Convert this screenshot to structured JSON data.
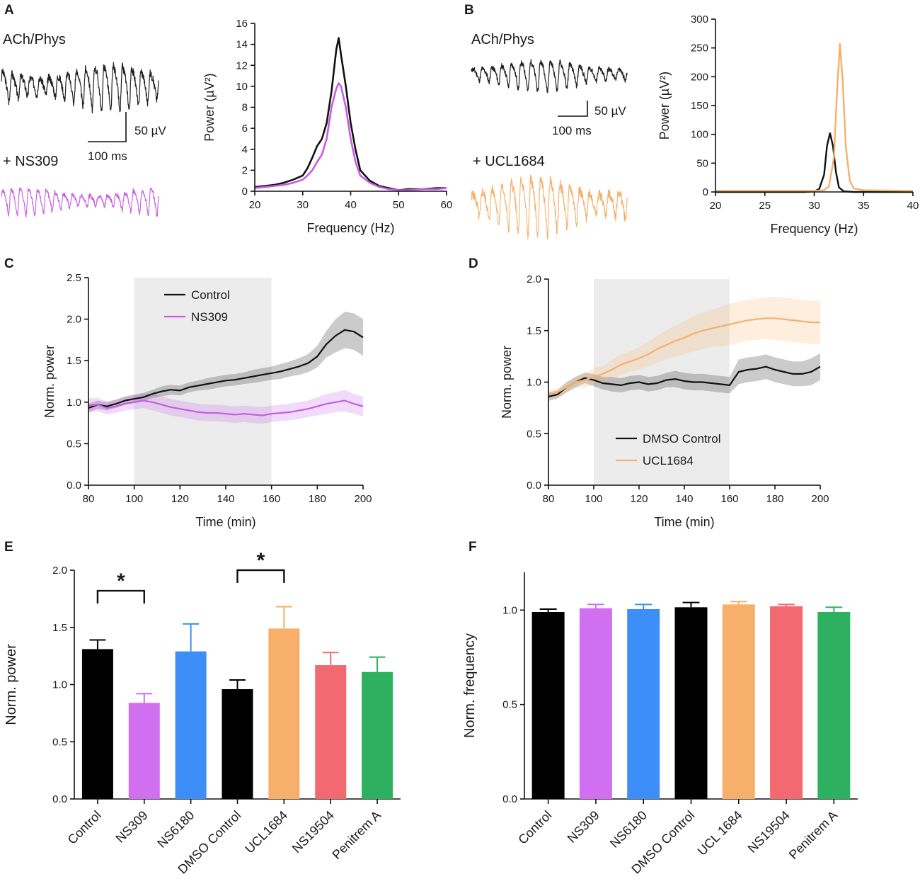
{
  "panels": {
    "A": {
      "letter": "A",
      "trace_top_label": "ACh/Phys",
      "trace_bottom_label": "+ NS309",
      "scale_v": "50 µV",
      "scale_t": "100 ms",
      "trace_top_color": "#222222",
      "trace_bottom_color": "#c65de6"
    },
    "B": {
      "letter": "B",
      "trace_top_label": "ACh/Phys",
      "trace_bottom_label": "+ UCL1684",
      "scale_v": "50 µV",
      "scale_t": "100 ms",
      "trace_top_color": "#222222",
      "trace_bottom_color": "#f5b16b"
    },
    "C": {
      "letter": "C"
    },
    "D": {
      "letter": "D"
    },
    "E": {
      "letter": "E",
      "sig_marker": "*"
    },
    "F": {
      "letter": "F"
    }
  },
  "chart_data": [
    {
      "id": "A-spectrum",
      "type": "line",
      "xlabel": "Frequency (Hz)",
      "ylabel": "Power (µV²)",
      "xlim": [
        20,
        60
      ],
      "ylim": [
        0,
        16
      ],
      "xticks": [
        20,
        30,
        40,
        50,
        60
      ],
      "yticks": [
        0,
        2,
        4,
        6,
        8,
        10,
        12,
        14,
        16
      ],
      "series": [
        {
          "name": "ACh/Phys",
          "color": "#111111",
          "x": [
            20,
            22,
            24,
            26,
            28,
            30,
            31,
            32,
            33,
            34,
            35,
            36,
            37,
            37.5,
            38,
            39,
            40,
            41,
            42,
            44,
            46,
            48,
            50,
            52,
            55,
            58,
            60
          ],
          "y": [
            0.4,
            0.5,
            0.6,
            0.8,
            1.1,
            1.5,
            2.2,
            3.2,
            4.3,
            5.0,
            6.5,
            9.5,
            13.5,
            14.6,
            13.0,
            10.0,
            6.5,
            4.0,
            2.0,
            1.0,
            0.5,
            0.3,
            0.1,
            0.2,
            0.2,
            0.3,
            0.3
          ]
        },
        {
          "name": "+ NS309",
          "color": "#c65de6",
          "x": [
            20,
            22,
            24,
            26,
            28,
            30,
            31,
            32,
            33,
            34,
            35,
            36,
            37,
            37.5,
            38,
            39,
            40,
            41,
            42,
            44,
            46,
            48,
            50,
            52,
            55,
            58,
            60
          ],
          "y": [
            0.3,
            0.4,
            0.5,
            0.6,
            0.8,
            1.1,
            1.5,
            2.0,
            2.8,
            3.5,
            5.0,
            8.0,
            9.8,
            10.3,
            10.0,
            8.0,
            5.0,
            2.8,
            1.5,
            0.8,
            0.4,
            0.2,
            0.1,
            0.1,
            0.2,
            0.2,
            0.3
          ]
        }
      ]
    },
    {
      "id": "B-spectrum",
      "type": "line",
      "xlabel": "Frequency (Hz)",
      "ylabel": "Power (µV²)",
      "xlim": [
        20,
        40
      ],
      "ylim": [
        0,
        300
      ],
      "xticks": [
        20,
        25,
        30,
        35,
        40
      ],
      "yticks": [
        0,
        50,
        100,
        150,
        200,
        250,
        300
      ],
      "series": [
        {
          "name": "ACh/Phys",
          "color": "#111111",
          "x": [
            20,
            29,
            30,
            30.5,
            31,
            31.3,
            31.6,
            31.9,
            32.2,
            32.5,
            33,
            34,
            40
          ],
          "y": [
            0,
            0,
            1,
            5,
            30,
            80,
            102,
            80,
            35,
            8,
            1,
            0,
            0
          ]
        },
        {
          "name": "+ UCL1684",
          "color": "#f5b16b",
          "x": [
            20,
            30,
            31,
            31.5,
            32,
            32.3,
            32.6,
            32.9,
            33.2,
            33.6,
            34,
            35,
            40
          ],
          "y": [
            2,
            2,
            3,
            10,
            60,
            170,
            257,
            190,
            80,
            20,
            6,
            3,
            2
          ]
        }
      ]
    },
    {
      "id": "C-timecourse",
      "type": "line",
      "xlabel": "Time (min)",
      "ylabel": "Norm. power",
      "xlim": [
        80,
        200
      ],
      "ylim": [
        0,
        2.5
      ],
      "xticks": [
        80,
        100,
        120,
        140,
        160,
        180,
        200
      ],
      "yticks": [
        0.0,
        0.5,
        1.0,
        1.5,
        2.0,
        2.5
      ],
      "ytick_labels": [
        "0.0",
        "0.5",
        "1.0",
        "1.5",
        "2.0",
        "2.5"
      ],
      "shaded_interval": [
        100,
        160
      ],
      "legend": [
        "Control",
        "NS309"
      ],
      "series": [
        {
          "name": "Control",
          "color": "#111111",
          "x": [
            80,
            84,
            88,
            92,
            96,
            100,
            104,
            108,
            112,
            116,
            120,
            124,
            128,
            132,
            136,
            140,
            144,
            148,
            152,
            156,
            160,
            164,
            168,
            172,
            176,
            180,
            184,
            188,
            192,
            196,
            200
          ],
          "y": [
            0.93,
            0.97,
            0.95,
            0.98,
            1.02,
            1.04,
            1.06,
            1.1,
            1.13,
            1.15,
            1.14,
            1.18,
            1.2,
            1.22,
            1.24,
            1.26,
            1.27,
            1.29,
            1.31,
            1.33,
            1.35,
            1.37,
            1.4,
            1.43,
            1.47,
            1.55,
            1.7,
            1.8,
            1.87,
            1.85,
            1.78
          ],
          "err": [
            0.05,
            0.05,
            0.05,
            0.05,
            0.05,
            0.05,
            0.05,
            0.05,
            0.06,
            0.06,
            0.06,
            0.06,
            0.06,
            0.07,
            0.07,
            0.07,
            0.07,
            0.07,
            0.08,
            0.08,
            0.08,
            0.09,
            0.09,
            0.1,
            0.11,
            0.13,
            0.16,
            0.2,
            0.22,
            0.22,
            0.22
          ]
        },
        {
          "name": "NS309",
          "color": "#c65de6",
          "x": [
            80,
            84,
            88,
            92,
            96,
            100,
            104,
            108,
            112,
            116,
            120,
            124,
            128,
            132,
            136,
            140,
            144,
            148,
            152,
            156,
            160,
            164,
            168,
            172,
            176,
            180,
            184,
            188,
            192,
            196,
            200
          ],
          "y": [
            0.96,
            0.97,
            0.93,
            0.95,
            0.98,
            1.0,
            1.02,
            1.0,
            0.97,
            0.94,
            0.92,
            0.9,
            0.88,
            0.87,
            0.87,
            0.86,
            0.85,
            0.86,
            0.85,
            0.84,
            0.86,
            0.87,
            0.88,
            0.9,
            0.92,
            0.95,
            0.98,
            1.0,
            1.02,
            0.98,
            0.95
          ],
          "err": [
            0.09,
            0.08,
            0.08,
            0.08,
            0.08,
            0.09,
            0.09,
            0.1,
            0.1,
            0.1,
            0.1,
            0.1,
            0.1,
            0.1,
            0.1,
            0.1,
            0.1,
            0.1,
            0.1,
            0.1,
            0.1,
            0.1,
            0.1,
            0.1,
            0.1,
            0.11,
            0.12,
            0.12,
            0.13,
            0.12,
            0.12
          ]
        }
      ]
    },
    {
      "id": "D-timecourse",
      "type": "line",
      "xlabel": "Time (min)",
      "ylabel": "Norm. power",
      "xlim": [
        80,
        200
      ],
      "ylim": [
        0,
        2.0
      ],
      "xticks": [
        80,
        100,
        120,
        140,
        160,
        180,
        200
      ],
      "yticks": [
        0.0,
        0.5,
        1.0,
        1.5,
        2.0
      ],
      "ytick_labels": [
        "0.0",
        "0.5",
        "1.0",
        "1.5",
        "2.0"
      ],
      "shaded_interval": [
        100,
        160
      ],
      "legend": [
        "DMSO Control",
        "UCL1684"
      ],
      "series": [
        {
          "name": "DMSO Control",
          "color": "#111111",
          "x": [
            80,
            84,
            88,
            92,
            96,
            100,
            104,
            108,
            112,
            116,
            120,
            124,
            128,
            132,
            136,
            140,
            144,
            148,
            152,
            156,
            160,
            164,
            168,
            172,
            176,
            180,
            184,
            188,
            192,
            196,
            200
          ],
          "y": [
            0.86,
            0.88,
            0.95,
            1.0,
            1.04,
            1.02,
            0.99,
            0.98,
            0.97,
            0.99,
            1.0,
            0.98,
            0.99,
            1.02,
            1.03,
            1.01,
            1.0,
            1.0,
            0.99,
            0.98,
            0.97,
            1.1,
            1.12,
            1.13,
            1.15,
            1.12,
            1.1,
            1.08,
            1.08,
            1.1,
            1.15
          ],
          "err": [
            0.04,
            0.04,
            0.05,
            0.05,
            0.05,
            0.06,
            0.06,
            0.07,
            0.07,
            0.07,
            0.07,
            0.07,
            0.07,
            0.07,
            0.08,
            0.08,
            0.08,
            0.08,
            0.08,
            0.08,
            0.08,
            0.12,
            0.12,
            0.12,
            0.12,
            0.12,
            0.12,
            0.12,
            0.12,
            0.13,
            0.13
          ]
        },
        {
          "name": "UCL1684",
          "color": "#f5b16b",
          "x": [
            80,
            84,
            88,
            92,
            96,
            100,
            104,
            108,
            112,
            116,
            120,
            124,
            128,
            132,
            136,
            140,
            144,
            148,
            152,
            156,
            160,
            164,
            168,
            172,
            176,
            180,
            184,
            188,
            192,
            196,
            200
          ],
          "y": [
            0.88,
            0.9,
            0.95,
            1.0,
            1.02,
            1.05,
            1.08,
            1.12,
            1.17,
            1.2,
            1.23,
            1.27,
            1.32,
            1.36,
            1.4,
            1.43,
            1.47,
            1.5,
            1.52,
            1.54,
            1.56,
            1.58,
            1.6,
            1.61,
            1.62,
            1.62,
            1.61,
            1.6,
            1.59,
            1.58,
            1.58
          ],
          "err": [
            0.04,
            0.04,
            0.05,
            0.06,
            0.07,
            0.08,
            0.08,
            0.09,
            0.1,
            0.1,
            0.11,
            0.12,
            0.13,
            0.14,
            0.15,
            0.16,
            0.17,
            0.18,
            0.18,
            0.19,
            0.2,
            0.2,
            0.2,
            0.2,
            0.2,
            0.21,
            0.21,
            0.21,
            0.21,
            0.21,
            0.21
          ]
        }
      ]
    },
    {
      "id": "E-bars",
      "type": "bar",
      "ylabel": "Norm. power",
      "ylim": [
        0,
        2.0
      ],
      "yticks": [
        0.0,
        0.5,
        1.0,
        1.5,
        2.0
      ],
      "ytick_labels": [
        "0.0",
        "0.5",
        "1.0",
        "1.5",
        "2.0"
      ],
      "categories": [
        "Control",
        "NS309",
        "NS6180",
        "DMSO Control",
        "UCL1684",
        "NS19504",
        "Penitrem A"
      ],
      "values": [
        1.31,
        0.84,
        1.29,
        0.96,
        1.49,
        1.17,
        1.11
      ],
      "errors": [
        0.08,
        0.08,
        0.24,
        0.08,
        0.19,
        0.11,
        0.13
      ],
      "colors": [
        "#000000",
        "#d070f0",
        "#3e8ef7",
        "#000000",
        "#f7b06a",
        "#f26a70",
        "#2db060"
      ],
      "significance": [
        {
          "from": 0,
          "to": 1,
          "label": "*",
          "y": 1.82
        },
        {
          "from": 3,
          "to": 4,
          "label": "*",
          "y": 2.0
        }
      ]
    },
    {
      "id": "F-bars",
      "type": "bar",
      "ylabel": "Norm. frequency",
      "ylim": [
        0,
        1.2
      ],
      "yticks": [
        0.0,
        0.5,
        1.0
      ],
      "ytick_labels": [
        "0.0",
        "0.5",
        "1.0"
      ],
      "categories": [
        "Control",
        "NS309",
        "NS6180",
        "DMSO Control",
        "UCL 1684",
        "NS19504",
        "Penitrem A"
      ],
      "values": [
        0.99,
        1.01,
        1.005,
        1.015,
        1.03,
        1.02,
        0.99
      ],
      "errors": [
        0.015,
        0.02,
        0.025,
        0.025,
        0.015,
        0.01,
        0.025
      ],
      "colors": [
        "#000000",
        "#d070f0",
        "#3e8ef7",
        "#000000",
        "#f7b06a",
        "#f26a70",
        "#2db060"
      ]
    }
  ]
}
